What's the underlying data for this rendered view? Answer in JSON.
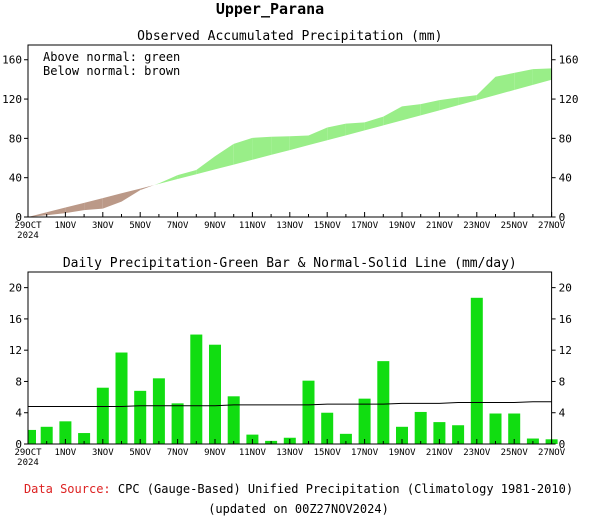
{
  "header": {
    "region": "Upper_Parana"
  },
  "footer": {
    "source_label": "Data Source:",
    "source_text": "CPC (Gauge-Based) Unified Precipitation (Climatology 1981-2010)",
    "updated": "(updated on 00Z27NOV2024)"
  },
  "colors": {
    "above": "#99ee88",
    "below": "#bb9988",
    "bar": "#11dd11",
    "source_label": "#dd2222"
  },
  "chart_data": [
    {
      "type": "area",
      "title": "Observed Accumulated Precipitation (mm)",
      "legend_lines": [
        "Above normal: green",
        "Below normal: brown"
      ],
      "legend_placement": "top-left",
      "x_ticks": [
        "29OCT",
        "1NOV",
        "3NOV",
        "5NOV",
        "7NOV",
        "9NOV",
        "11NOV",
        "13NOV",
        "15NOV",
        "17NOV",
        "19NOV",
        "21NOV",
        "23NOV",
        "25NOV",
        "27NOV"
      ],
      "x_year": "2024",
      "ylim": [
        0,
        175
      ],
      "y_ticks": [
        0,
        40,
        80,
        120,
        160
      ],
      "series": [
        {
          "name": "Observed",
          "values": [
            1.8,
            4.0,
            7.0,
            8.5,
            15.7,
            27.4,
            34.2,
            42.6,
            47.8,
            61.8,
            74.4,
            80.5,
            81.7,
            82.1,
            82.9,
            91.0,
            95.0,
            96.3,
            102.1,
            112.6,
            114.8,
            118.9,
            121.6,
            124.0,
            142.7,
            146.6,
            150.5,
            151.2,
            151.8
          ]
        },
        {
          "name": "Normal",
          "values": [
            4.8,
            9.6,
            14.4,
            19.2,
            24.1,
            28.9,
            33.7,
            38.6,
            43.5,
            48.4,
            53.3,
            58.2,
            63.2,
            68.1,
            73.1,
            78.1,
            83.1,
            88.1,
            93.2,
            98.3,
            103.4,
            108.5,
            113.7,
            118.8,
            124.0,
            129.2,
            134.4,
            139.7,
            145.0
          ]
        }
      ]
    },
    {
      "type": "bar",
      "title": "Daily Precipitation-Green Bar & Normal-Solid Line (mm/day)",
      "x_ticks": [
        "29OCT",
        "1NOV",
        "3NOV",
        "5NOV",
        "7NOV",
        "9NOV",
        "11NOV",
        "13NOV",
        "15NOV",
        "17NOV",
        "19NOV",
        "21NOV",
        "23NOV",
        "25NOV",
        "27NOV"
      ],
      "x_year": "2024",
      "ylim": [
        0,
        22
      ],
      "y_ticks": [
        0,
        4,
        8,
        12,
        16,
        20
      ],
      "series": [
        {
          "name": "Daily",
          "values": [
            1.8,
            2.2,
            2.9,
            1.4,
            7.2,
            11.7,
            6.8,
            8.4,
            5.2,
            14.0,
            12.7,
            6.1,
            1.2,
            0.4,
            0.8,
            8.1,
            4.0,
            1.3,
            5.8,
            10.6,
            2.2,
            4.1,
            2.8,
            2.4,
            18.7,
            3.9,
            3.9,
            0.7,
            0.6
          ]
        },
        {
          "name": "Normal",
          "values": [
            4.8,
            4.8,
            4.8,
            4.8,
            4.8,
            4.8,
            4.9,
            4.9,
            4.9,
            4.9,
            4.9,
            5.0,
            5.0,
            5.0,
            5.0,
            5.0,
            5.1,
            5.1,
            5.1,
            5.1,
            5.2,
            5.2,
            5.2,
            5.3,
            5.3,
            5.3,
            5.3,
            5.4,
            5.4,
            5.5
          ]
        }
      ]
    }
  ]
}
